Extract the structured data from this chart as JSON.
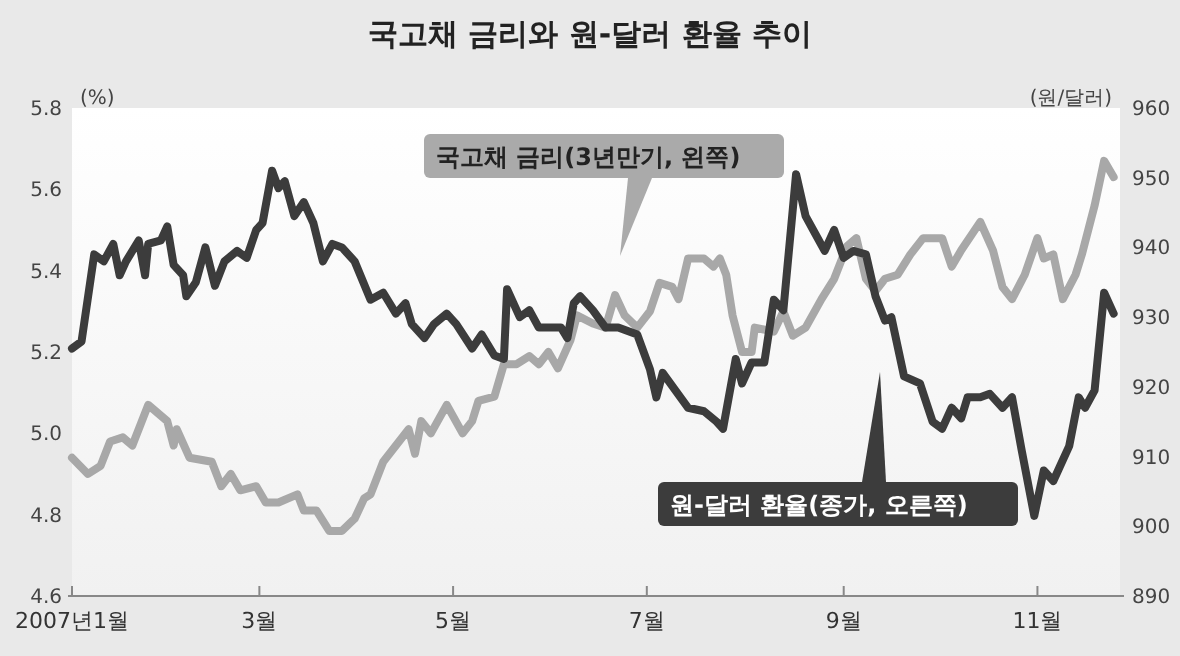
{
  "chart_data": {
    "type": "line",
    "title": "국고채 금리와 원-달러 환율 추이",
    "ylabel": "(%)",
    "y2label": "(원/달러)",
    "xlim": [
      "2007-01-01",
      "2007-11-27"
    ],
    "xticks": [
      {
        "value": "2007-01-01",
        "label": "2007년1월"
      },
      {
        "value": "2007-03-01",
        "label": "3월"
      },
      {
        "value": "2007-05-01",
        "label": "5월"
      },
      {
        "value": "2007-07-01",
        "label": "7월"
      },
      {
        "value": "2007-09-01",
        "label": "9월"
      },
      {
        "value": "2007-11-01",
        "label": "11월"
      }
    ],
    "ylim": [
      4.6,
      5.8
    ],
    "yticks": [
      4.6,
      4.8,
      {
        "value": 5,
        "label": "5.0"
      },
      5.2,
      5.4,
      5.6,
      5.8
    ],
    "y2lim": [
      890,
      960
    ],
    "y2ticks": [
      890,
      900,
      910,
      920,
      930,
      940,
      950,
      960
    ],
    "series": [
      {
        "name": "국고채 금리(3년만기, 왼쪽)",
        "color": "#a8a8a8",
        "x": [
          "2007-01-01",
          "2007-01-06",
          "2007-01-10",
          "2007-01-13",
          "2007-01-17",
          "2007-01-20",
          "2007-01-25",
          "2007-01-31",
          "2007-02-02",
          "2007-02-03",
          "2007-02-07",
          "2007-02-14",
          "2007-02-17",
          "2007-02-20",
          "2007-02-23",
          "2007-02-28",
          "2007-03-03",
          "2007-03-07",
          "2007-03-13",
          "2007-03-15",
          "2007-03-19",
          "2007-03-23",
          "2007-03-27",
          "2007-03-31",
          "2007-04-03",
          "2007-04-05",
          "2007-04-09",
          "2007-04-13",
          "2007-04-17",
          "2007-04-19",
          "2007-04-21",
          "2007-04-24",
          "2007-04-29",
          "2007-05-04",
          "2007-05-07",
          "2007-05-09",
          "2007-05-14",
          "2007-05-17",
          "2007-05-21",
          "2007-05-25",
          "2007-05-28",
          "2007-05-31",
          "2007-06-03",
          "2007-06-07",
          "2007-06-09",
          "2007-06-14",
          "2007-06-18",
          "2007-06-21",
          "2007-06-24",
          "2007-06-28",
          "2007-07-02",
          "2007-07-05",
          "2007-07-09",
          "2007-07-11",
          "2007-07-14",
          "2007-07-19",
          "2007-07-22",
          "2007-07-24",
          "2007-07-26",
          "2007-07-28",
          "2007-07-31",
          "2007-08-03",
          "2007-08-04",
          "2007-08-10",
          "2007-08-13",
          "2007-08-16",
          "2007-08-20",
          "2007-08-25",
          "2007-08-29",
          "2007-09-02",
          "2007-09-05",
          "2007-09-08",
          "2007-09-11",
          "2007-09-14",
          "2007-09-18",
          "2007-09-22",
          "2007-09-26",
          "2007-10-02",
          "2007-10-05",
          "2007-10-08",
          "2007-10-14",
          "2007-10-18",
          "2007-10-21",
          "2007-10-24",
          "2007-10-28",
          "2007-11-01",
          "2007-11-03",
          "2007-11-06",
          "2007-11-09",
          "2007-11-13",
          "2007-11-15",
          "2007-11-19",
          "2007-11-22",
          "2007-11-25"
        ],
        "values": [
          4.94,
          4.9,
          4.92,
          4.98,
          4.99,
          4.97,
          5.07,
          5.03,
          4.97,
          5.01,
          4.94,
          4.93,
          4.87,
          4.9,
          4.86,
          4.87,
          4.83,
          4.83,
          4.85,
          4.81,
          4.81,
          4.76,
          4.76,
          4.79,
          4.84,
          4.85,
          4.93,
          4.97,
          5.01,
          4.95,
          5.03,
          5.0,
          5.07,
          5.0,
          5.03,
          5.08,
          5.09,
          5.17,
          5.17,
          5.19,
          5.17,
          5.2,
          5.16,
          5.23,
          5.29,
          5.27,
          5.26,
          5.34,
          5.29,
          5.26,
          5.3,
          5.37,
          5.36,
          5.33,
          5.43,
          5.43,
          5.41,
          5.43,
          5.39,
          5.29,
          5.2,
          5.2,
          5.26,
          5.25,
          5.3,
          5.24,
          5.26,
          5.33,
          5.38,
          5.46,
          5.48,
          5.38,
          5.35,
          5.38,
          5.39,
          5.44,
          5.48,
          5.48,
          5.41,
          5.45,
          5.52,
          5.45,
          5.36,
          5.33,
          5.39,
          5.48,
          5.43,
          5.44,
          5.33,
          5.39,
          5.44,
          5.56,
          5.67,
          5.63
        ]
      },
      {
        "name": "원-달러 환율(종가, 오른쪽)",
        "color": "#3c3c3c",
        "axis": "y2",
        "x": [
          "2007-01-01",
          "2007-01-04",
          "2007-01-08",
          "2007-01-11",
          "2007-01-14",
          "2007-01-16",
          "2007-01-18",
          "2007-01-22",
          "2007-01-24",
          "2007-01-25",
          "2007-01-29",
          "2007-01-31",
          "2007-02-02",
          "2007-02-05",
          "2007-02-06",
          "2007-02-09",
          "2007-02-12",
          "2007-02-15",
          "2007-02-18",
          "2007-02-22",
          "2007-02-25",
          "2007-02-28",
          "2007-03-02",
          "2007-03-05",
          "2007-03-07",
          "2007-03-09",
          "2007-03-12",
          "2007-03-15",
          "2007-03-18",
          "2007-03-21",
          "2007-03-24",
          "2007-03-27",
          "2007-03-31",
          "2007-04-05",
          "2007-04-09",
          "2007-04-13",
          "2007-04-16",
          "2007-04-18",
          "2007-04-22",
          "2007-04-25",
          "2007-04-29",
          "2007-05-02",
          "2007-05-07",
          "2007-05-10",
          "2007-05-14",
          "2007-05-17",
          "2007-05-18",
          "2007-05-22",
          "2007-05-25",
          "2007-05-28",
          "2007-06-01",
          "2007-06-04",
          "2007-06-06",
          "2007-06-08",
          "2007-06-10",
          "2007-06-14",
          "2007-06-18",
          "2007-06-22",
          "2007-06-28",
          "2007-07-02",
          "2007-07-04",
          "2007-07-06",
          "2007-07-10",
          "2007-07-14",
          "2007-07-19",
          "2007-07-23",
          "2007-07-25",
          "2007-07-29",
          "2007-07-31",
          "2007-08-03",
          "2007-08-07",
          "2007-08-10",
          "2007-08-13",
          "2007-08-17",
          "2007-08-20",
          "2007-08-23",
          "2007-08-26",
          "2007-08-29",
          "2007-09-01",
          "2007-09-04",
          "2007-09-08",
          "2007-09-11",
          "2007-09-14",
          "2007-09-16",
          "2007-09-20",
          "2007-09-25",
          "2007-09-29",
          "2007-10-02",
          "2007-10-05",
          "2007-10-08",
          "2007-10-10",
          "2007-10-14",
          "2007-10-17",
          "2007-10-21",
          "2007-10-24",
          "2007-10-27",
          "2007-10-31",
          "2007-11-03",
          "2007-11-06",
          "2007-11-08",
          "2007-11-11",
          "2007-11-14",
          "2007-11-16",
          "2007-11-19",
          "2007-11-22",
          "2007-11-25"
        ],
        "values": [
          925.5,
          926.5,
          939,
          938,
          940.5,
          936,
          938,
          941,
          936,
          940.5,
          941,
          943,
          937.5,
          936,
          933,
          935,
          940,
          934.5,
          938,
          939.5,
          938.5,
          942.5,
          943.5,
          951,
          948.5,
          949.5,
          944.5,
          946.5,
          943.5,
          938,
          940.5,
          940,
          938,
          932.5,
          933.5,
          930.5,
          932,
          929,
          927,
          929,
          930.5,
          929,
          925.5,
          927.5,
          924.5,
          924,
          934,
          930,
          931,
          928.5,
          928.5,
          928.5,
          927,
          932,
          933,
          931,
          928.5,
          928.5,
          927.5,
          922.5,
          918.5,
          922,
          919.5,
          917,
          916.5,
          915,
          914,
          924,
          920.5,
          923.5,
          923.5,
          932.5,
          931,
          950.5,
          944.5,
          942,
          939.5,
          942.5,
          938.5,
          939.5,
          939,
          933,
          929.5,
          930,
          921.5,
          920.5,
          915,
          914,
          917,
          915.5,
          918.5,
          918.5,
          919,
          917,
          918.5,
          911,
          901.5,
          908,
          906.5,
          908.5,
          911.5,
          918.5,
          917,
          919.5,
          933.5,
          930.5
        ]
      }
    ]
  }
}
